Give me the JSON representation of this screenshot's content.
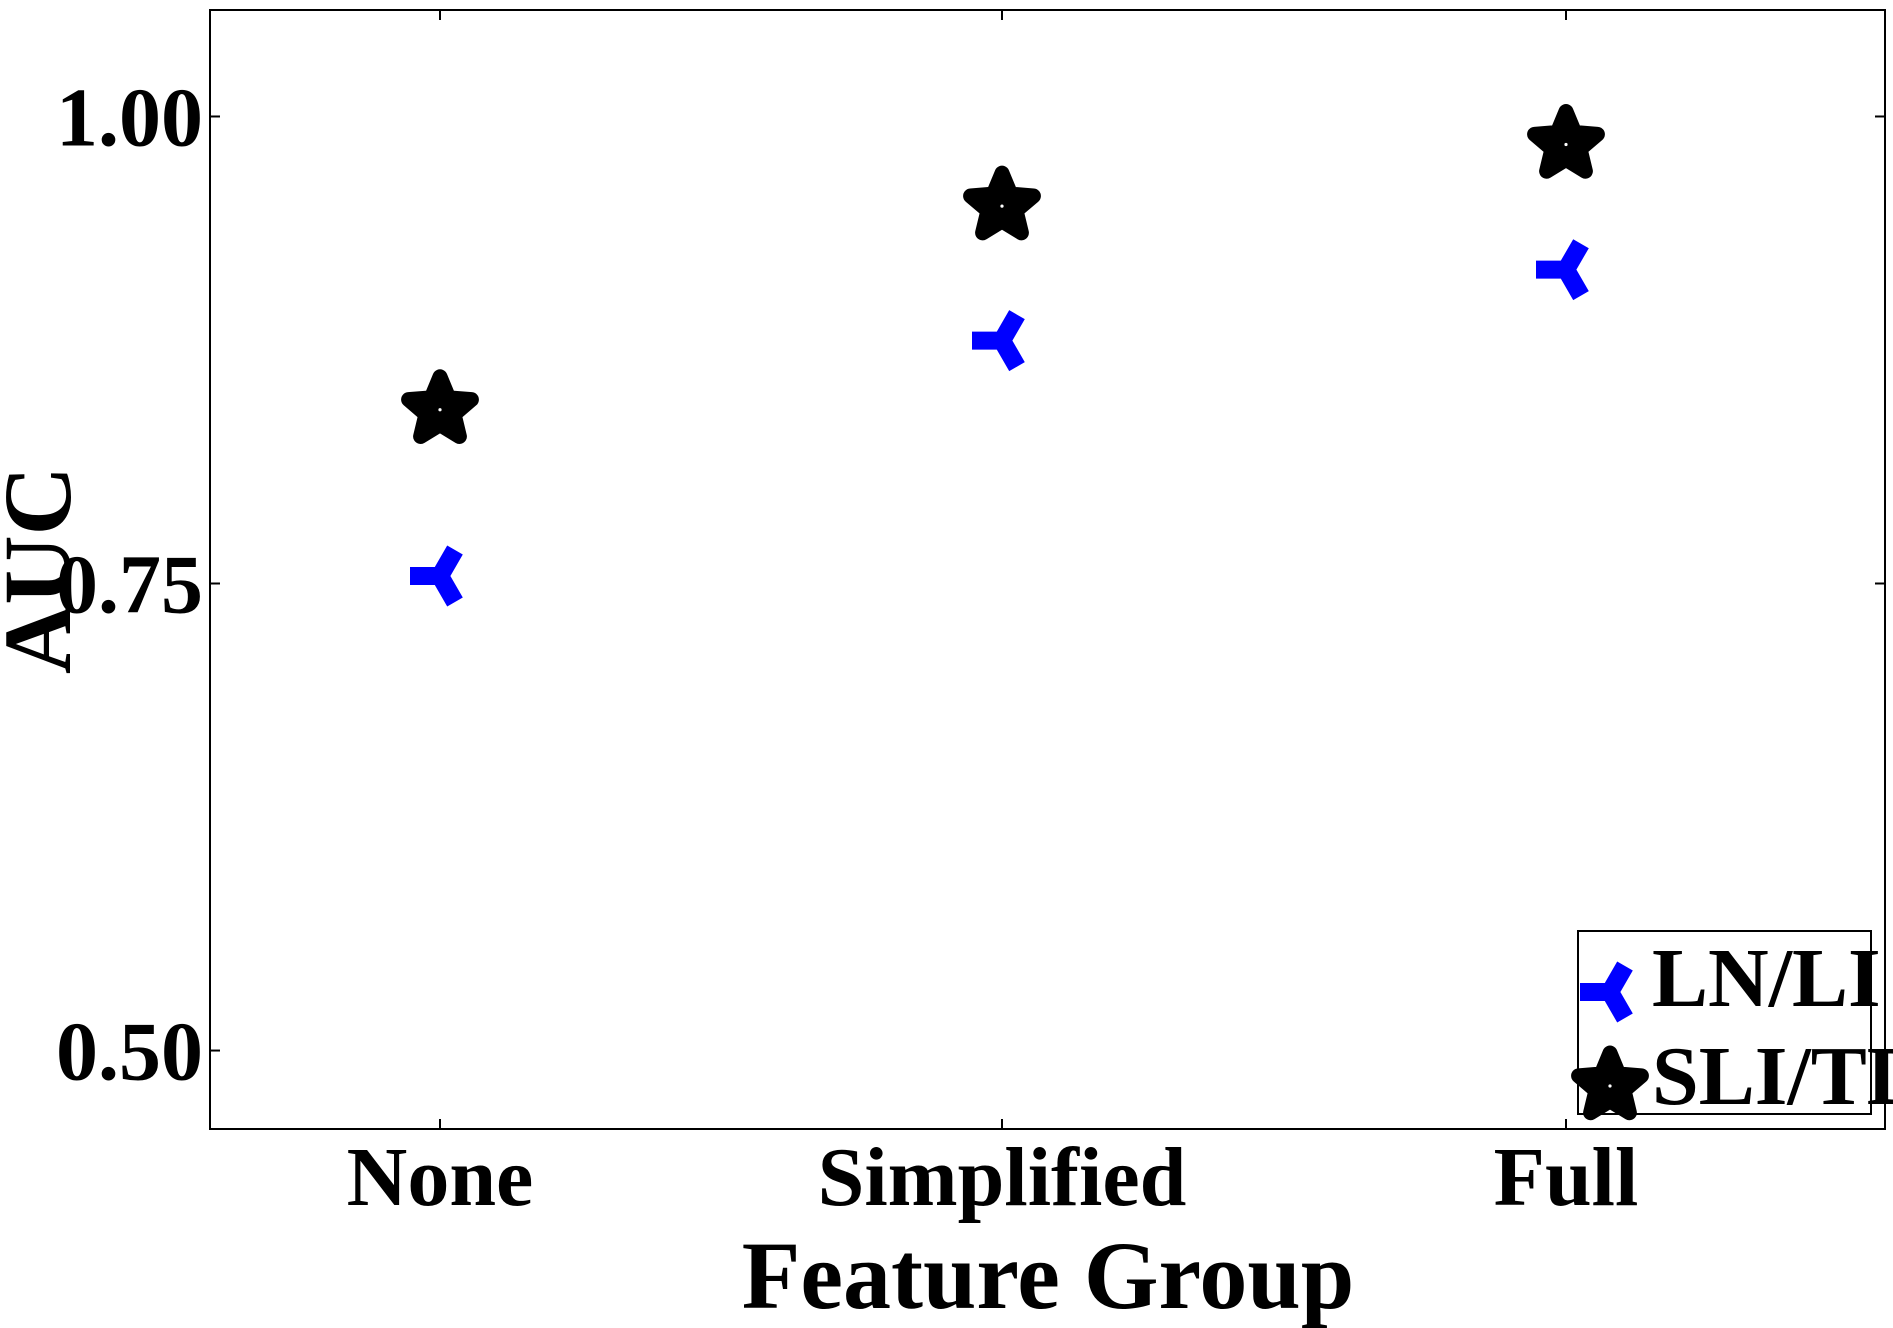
{
  "chart_data": {
    "type": "scatter",
    "title": "",
    "xlabel": "Feature Group",
    "ylabel": "AUC",
    "categories": [
      "None",
      "Simplified",
      "Full"
    ],
    "ylim": [
      0.458,
      1.057
    ],
    "yticks": [
      0.5,
      0.75,
      1.0
    ],
    "ytick_labels": [
      "0.50",
      "0.75",
      "1.00"
    ],
    "grid": false,
    "legend_position": "lower-right",
    "series": [
      {
        "name": "LN/LI",
        "marker": "tri-left",
        "color": "#0000ff",
        "values": [
          0.754,
          0.88,
          0.918
        ]
      },
      {
        "name": "SLI/TD",
        "marker": "star",
        "color": "#000000",
        "values": [
          0.843,
          0.952,
          0.985
        ]
      }
    ]
  }
}
